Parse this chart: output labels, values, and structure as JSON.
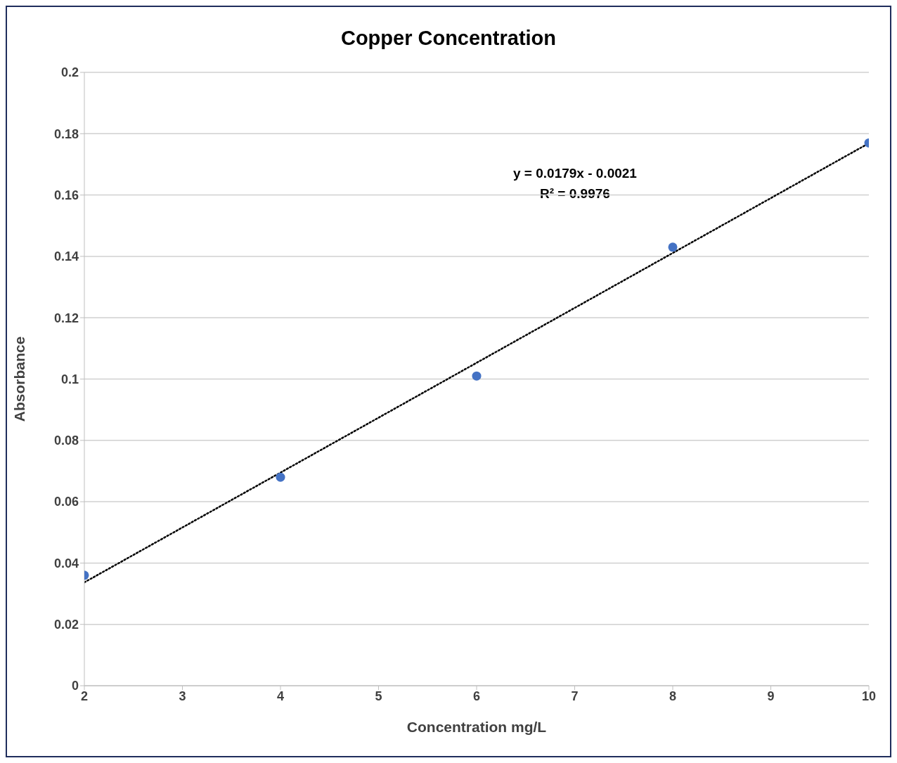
{
  "chart_data": {
    "type": "scatter",
    "title": "Copper Concentration",
    "xlabel": "Concentration mg/L",
    "ylabel": "Absorbance",
    "series": [
      {
        "color": "#4472c4",
        "x": [
          2,
          4,
          6,
          8,
          10
        ],
        "values": [
          0.036,
          0.068,
          0.101,
          0.143,
          0.177
        ],
        "marker": "circle"
      },
      {
        "type": "line",
        "color": "#000000",
        "x": [
          2,
          10
        ],
        "values": [
          0.0337,
          0.1769
        ],
        "marker": "none",
        "line_style": "dotted"
      }
    ],
    "annotations": [
      "y = 0.0179x - 0.0021",
      "R² = 0.9976"
    ],
    "xlim": [
      2,
      10
    ],
    "xticks": [
      2,
      3,
      4,
      5,
      6,
      7,
      8,
      9,
      10
    ],
    "ylim": [
      0,
      0.2
    ],
    "yticks": [
      0,
      0.02,
      0.04,
      0.06,
      0.08,
      0.1,
      0.12,
      0.14,
      0.16,
      0.18,
      0.2
    ],
    "grid": "y",
    "legend": false
  }
}
